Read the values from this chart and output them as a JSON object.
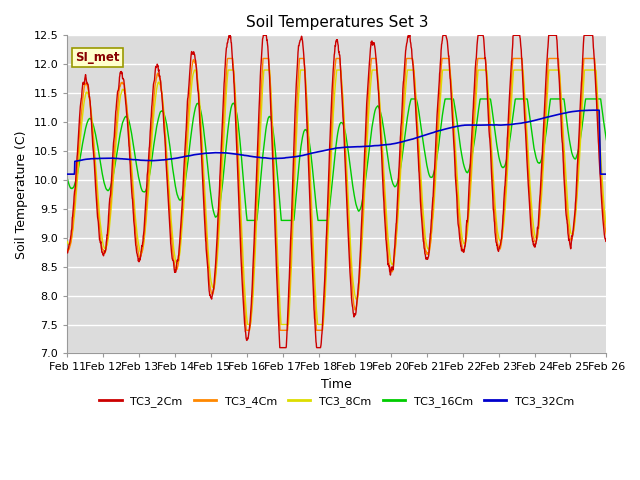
{
  "title": "Soil Temperatures Set 3",
  "xlabel": "Time",
  "ylabel": "Soil Temperature (C)",
  "ylim": [
    7.0,
    12.5
  ],
  "yticks": [
    7.0,
    7.5,
    8.0,
    8.5,
    9.0,
    9.5,
    10.0,
    10.5,
    11.0,
    11.5,
    12.0,
    12.5
  ],
  "x_labels": [
    "Feb 11",
    "Feb 12",
    "Feb 13",
    "Feb 14",
    "Feb 15",
    "Feb 16",
    "Feb 17",
    "Feb 18",
    "Feb 19",
    "Feb 20",
    "Feb 21",
    "Feb 22",
    "Feb 23",
    "Feb 24",
    "Feb 25",
    "Feb 26"
  ],
  "series_order": [
    "TC3_2Cm",
    "TC3_4Cm",
    "TC3_8Cm",
    "TC3_16Cm",
    "TC3_32Cm"
  ],
  "colors": {
    "TC3_2Cm": "#CC0000",
    "TC3_4Cm": "#FF8800",
    "TC3_8Cm": "#DDDD00",
    "TC3_16Cm": "#00CC00",
    "TC3_32Cm": "#0000CC"
  },
  "lw": {
    "TC3_2Cm": 1.0,
    "TC3_4Cm": 1.0,
    "TC3_8Cm": 1.0,
    "TC3_16Cm": 1.0,
    "TC3_32Cm": 1.2
  },
  "plot_bg": "#DCDCDC",
  "fig_bg": "#FFFFFF",
  "grid_color": "#FFFFFF",
  "annotation_text": "SI_met",
  "annotation_color": "#880000",
  "annotation_bg": "#FFFFCC",
  "annotation_border": "#999900"
}
